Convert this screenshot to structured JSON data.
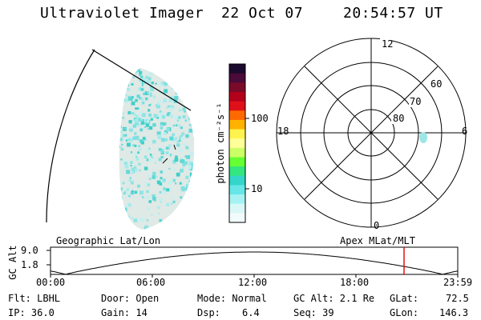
{
  "header": {
    "instrument": "Ultraviolet Imager",
    "date": "22 Oct 07",
    "time": "20:54:57 UT"
  },
  "colorbar": {
    "label": "photon cm⁻²s⁻¹",
    "ticks": [
      "100",
      "10"
    ],
    "colors": [
      "#1a0a2e",
      "#4a0a3a",
      "#7a0a2a",
      "#b3001b",
      "#e0101a",
      "#ff6a00",
      "#ffb300",
      "#fff34d",
      "#ffff99",
      "#ccff66",
      "#66ff33",
      "#33e680",
      "#33d6c8",
      "#66e6e6",
      "#a6f2f2",
      "#d9f7f7",
      "#f2fbfb"
    ]
  },
  "polar": {
    "mlt_labels": {
      "top": "12",
      "left": "18",
      "right": "6",
      "bottom": "0"
    },
    "lat_labels": [
      "60",
      "70",
      "80"
    ]
  },
  "track": {
    "left_label": "Geographic Lat/Lon",
    "right_label": "Apex MLat/MLT",
    "y_axis_label": "GC Alt",
    "y_ticks": [
      "9.0",
      "1.8"
    ],
    "x_ticks": [
      "00:00",
      "06:00",
      "12:00",
      "18:00",
      "23:59"
    ],
    "marker_color": "#e00000"
  },
  "status": {
    "flt": "Flt: LBHL",
    "ip": "IP: 36.0",
    "door": "Door: Open",
    "gain": "Gain: 14",
    "mode": "Mode: Normal",
    "dsp_label": "Dsp:",
    "dsp_value": "6.4",
    "gc_alt": "GC Alt: 2.1 Re",
    "seq": "Seq: 39",
    "glat_label": "GLat:",
    "glat_value": "72.5",
    "glon_label": "GLon:",
    "glon_value": "146.3"
  }
}
